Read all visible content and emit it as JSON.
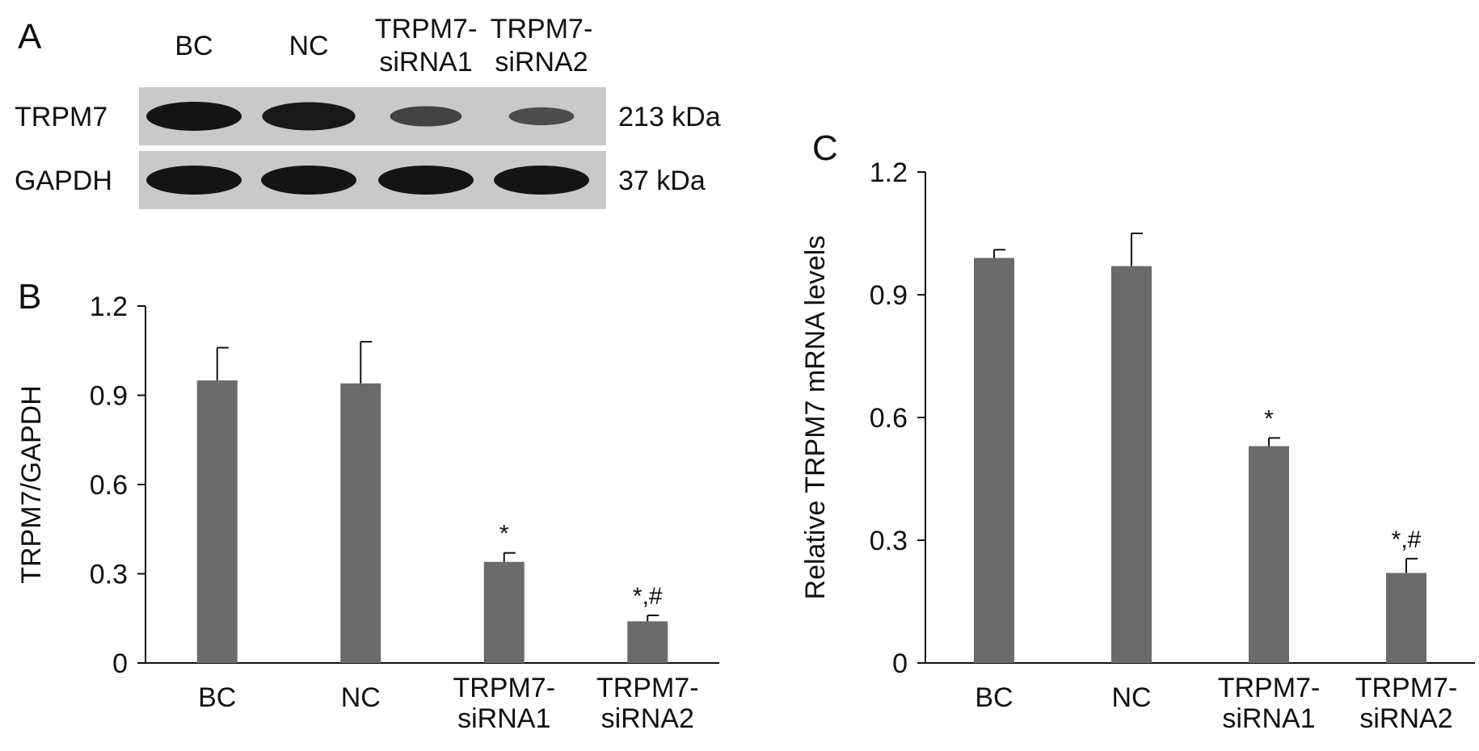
{
  "panels": {
    "A": {
      "letter": "A",
      "lanes": [
        {
          "line1": "BC",
          "line2": ""
        },
        {
          "line1": "NC",
          "line2": ""
        },
        {
          "line1": "TRPM7-",
          "line2": "siRNA1"
        },
        {
          "line1": "TRPM7-",
          "line2": "siRNA2"
        }
      ],
      "blots": [
        {
          "protein": "TRPM7",
          "size": "213 kDa",
          "band_intensity": [
            1.0,
            0.95,
            0.45,
            0.3
          ]
        },
        {
          "protein": "GAPDH",
          "size": "37 kDa",
          "band_intensity": [
            1.0,
            1.0,
            1.0,
            1.0
          ]
        }
      ]
    },
    "B": {
      "letter": "B"
    },
    "C": {
      "letter": "C"
    }
  },
  "colors": {
    "bar": "#6b6b6b",
    "axis": "#111111",
    "blot_bg": "#c9c9c9",
    "band": "#141414"
  },
  "chart_data": [
    {
      "type": "bar",
      "panel": "B",
      "categories": [
        [
          "BC"
        ],
        [
          "NC"
        ],
        [
          "TRPM7-",
          "siRNA1"
        ],
        [
          "TRPM7-",
          "siRNA2"
        ]
      ],
      "values": [
        0.95,
        0.94,
        0.34,
        0.14
      ],
      "errors": [
        0.11,
        0.14,
        0.03,
        0.02
      ],
      "annotations": [
        "",
        "",
        "*",
        "*,#"
      ],
      "ylabel": "TRPM7/GAPDH",
      "xlabel": "",
      "ylim": [
        0,
        1.2
      ],
      "yticks": [
        {
          "value": 0,
          "label": "0"
        },
        {
          "value": 0.3,
          "label": "0.3"
        },
        {
          "value": 0.6,
          "label": "0.6"
        },
        {
          "value": 0.9,
          "label": "0.9"
        },
        {
          "value": 1.2,
          "label": "1.2"
        }
      ],
      "grid": false
    },
    {
      "type": "bar",
      "panel": "C",
      "categories": [
        [
          "BC"
        ],
        [
          "NC"
        ],
        [
          "TRPM7-",
          "siRNA1"
        ],
        [
          "TRPM7-",
          "siRNA2"
        ]
      ],
      "values": [
        0.99,
        0.97,
        0.53,
        0.22
      ],
      "errors": [
        0.02,
        0.08,
        0.02,
        0.035
      ],
      "annotations": [
        "",
        "",
        "*",
        "*,#"
      ],
      "ylabel": "Relative TRPM7 mRNA levels",
      "xlabel": "",
      "ylim": [
        0,
        1.2
      ],
      "yticks": [
        {
          "value": 0,
          "label": "0"
        },
        {
          "value": 0.3,
          "label": "0.3"
        },
        {
          "value": 0.6,
          "label": "0.6"
        },
        {
          "value": 0.9,
          "label": "0.9"
        },
        {
          "value": 1.2,
          "label": "1.2"
        }
      ],
      "grid": false
    }
  ]
}
